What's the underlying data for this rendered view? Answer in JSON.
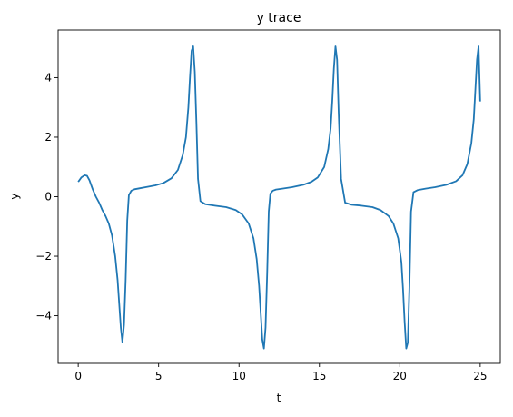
{
  "chart_data": {
    "type": "line",
    "title": "y trace",
    "xlabel": "t",
    "ylabel": "y",
    "xlim": [
      -1.25,
      26.25
    ],
    "ylim": [
      -5.6,
      5.6
    ],
    "xticks": [
      0,
      5,
      10,
      15,
      20,
      25
    ],
    "yticks": [
      -4,
      -2,
      0,
      2,
      4
    ],
    "xtick_labels": [
      "0",
      "5",
      "10",
      "15",
      "20",
      "25"
    ],
    "ytick_labels": [
      "−4",
      "−2",
      "0",
      "2",
      "4"
    ],
    "grid": false,
    "line_color": "#1f77b4",
    "series": [
      {
        "x": [
          0.0,
          0.2,
          0.4,
          0.55,
          0.7,
          0.9,
          1.1,
          1.3,
          1.5,
          1.7,
          1.9,
          2.1,
          2.3,
          2.45,
          2.55,
          2.65,
          2.75,
          2.85,
          2.95,
          3.05,
          3.15,
          3.3,
          3.5,
          3.8,
          4.2,
          4.8,
          5.3,
          5.8,
          6.2,
          6.5,
          6.7,
          6.85,
          6.95,
          7.05,
          7.15,
          7.25,
          7.35,
          7.45,
          7.6,
          7.9,
          8.5,
          9.2,
          9.8,
          10.2,
          10.6,
          10.9,
          11.1,
          11.25,
          11.35,
          11.45,
          11.55,
          11.65,
          11.75,
          11.85,
          11.95,
          12.1,
          12.3,
          12.7,
          13.3,
          14.0,
          14.5,
          14.9,
          15.3,
          15.55,
          15.7,
          15.8,
          15.9,
          16.0,
          16.1,
          16.2,
          16.35,
          16.6,
          17.0,
          17.6,
          18.3,
          18.8,
          19.3,
          19.6,
          19.9,
          20.1,
          20.2,
          20.3,
          20.4,
          20.5,
          20.6,
          20.7,
          20.85,
          21.1,
          21.6,
          22.2,
          22.9,
          23.5,
          23.9,
          24.2,
          24.45,
          24.6,
          24.7,
          24.8,
          24.9,
          25.0
        ],
        "y": [
          0.5,
          0.65,
          0.72,
          0.7,
          0.55,
          0.25,
          0.0,
          -0.2,
          -0.45,
          -0.65,
          -0.9,
          -1.3,
          -2.0,
          -2.8,
          -3.6,
          -4.4,
          -4.9,
          -4.3,
          -2.8,
          -0.8,
          0.05,
          0.2,
          0.25,
          0.28,
          0.32,
          0.38,
          0.46,
          0.62,
          0.9,
          1.4,
          2.0,
          3.0,
          4.0,
          4.9,
          5.05,
          4.2,
          2.5,
          0.6,
          -0.15,
          -0.25,
          -0.3,
          -0.35,
          -0.45,
          -0.6,
          -0.9,
          -1.4,
          -2.1,
          -3.0,
          -3.9,
          -4.8,
          -5.1,
          -4.4,
          -2.6,
          -0.5,
          0.1,
          0.2,
          0.24,
          0.27,
          0.32,
          0.4,
          0.5,
          0.65,
          1.0,
          1.6,
          2.3,
          3.2,
          4.3,
          5.05,
          4.6,
          2.8,
          0.6,
          -0.2,
          -0.27,
          -0.3,
          -0.35,
          -0.45,
          -0.65,
          -0.9,
          -1.4,
          -2.2,
          -3.1,
          -4.2,
          -5.1,
          -4.9,
          -3.0,
          -0.5,
          0.15,
          0.22,
          0.27,
          0.32,
          0.4,
          0.52,
          0.72,
          1.1,
          1.8,
          2.6,
          3.6,
          4.6,
          5.05,
          3.2
        ]
      }
    ]
  }
}
